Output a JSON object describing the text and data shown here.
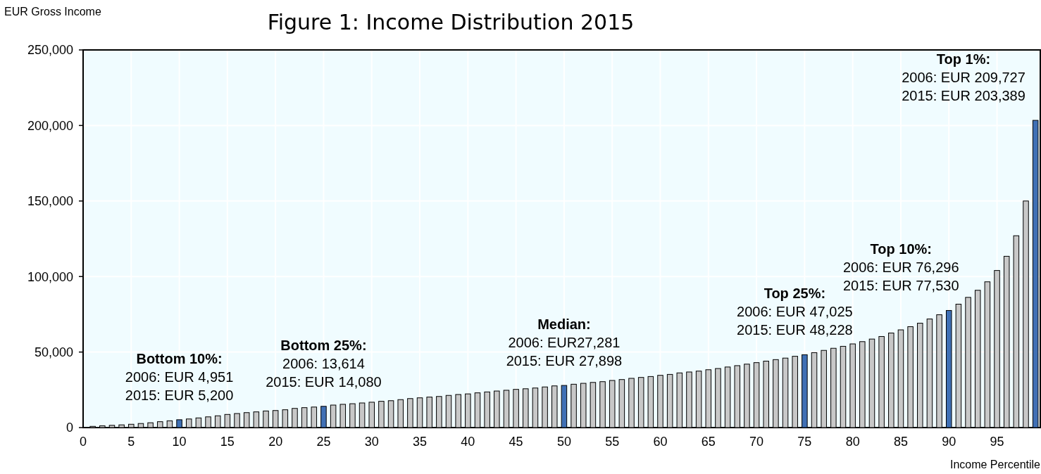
{
  "chart_data": {
    "type": "bar",
    "title": "Figure 1: Income Distribution 2015",
    "xlabel": "Income Percentile",
    "ylabel": "EUR Gross Income",
    "x": [
      1,
      2,
      3,
      4,
      5,
      6,
      7,
      8,
      9,
      10,
      11,
      12,
      13,
      14,
      15,
      16,
      17,
      18,
      19,
      20,
      21,
      22,
      23,
      24,
      25,
      26,
      27,
      28,
      29,
      30,
      31,
      32,
      33,
      34,
      35,
      36,
      37,
      38,
      39,
      40,
      41,
      42,
      43,
      44,
      45,
      46,
      47,
      48,
      49,
      50,
      51,
      52,
      53,
      54,
      55,
      56,
      57,
      58,
      59,
      60,
      61,
      62,
      63,
      64,
      65,
      66,
      67,
      68,
      69,
      70,
      71,
      72,
      73,
      74,
      75,
      76,
      77,
      78,
      79,
      80,
      81,
      82,
      83,
      84,
      85,
      86,
      87,
      88,
      89,
      90,
      91,
      92,
      93,
      94,
      95,
      96,
      97,
      98,
      99
    ],
    "values": [
      800,
      1200,
      1500,
      1800,
      2200,
      2700,
      3200,
      3900,
      4500,
      5200,
      5700,
      6400,
      7100,
      7800,
      8700,
      9300,
      9900,
      10400,
      11000,
      11300,
      11800,
      12700,
      13200,
      13600,
      14080,
      14900,
      15400,
      15800,
      16300,
      16800,
      17400,
      17800,
      18500,
      19200,
      19700,
      20200,
      20600,
      21300,
      21900,
      22300,
      23000,
      23600,
      24200,
      24700,
      25300,
      25700,
      26200,
      26900,
      27600,
      27898,
      28700,
      29300,
      29900,
      30400,
      31200,
      31800,
      32600,
      33200,
      33800,
      34600,
      35200,
      36200,
      36800,
      37400,
      38300,
      39100,
      40100,
      41000,
      42000,
      43000,
      44000,
      45000,
      46000,
      47200,
      48228,
      49600,
      51100,
      52500,
      53800,
      55400,
      56900,
      58600,
      60300,
      62600,
      64700,
      66800,
      69100,
      71900,
      74700,
      77530,
      81700,
      86200,
      90900,
      96500,
      104000,
      113400,
      127000,
      150000,
      203389
    ],
    "colors": [
      "#c8c8c8",
      "#c8c8c8",
      "#c8c8c8",
      "#c8c8c8",
      "#c8c8c8",
      "#c8c8c8",
      "#c8c8c8",
      "#c8c8c8",
      "#c8c8c8",
      "#3f70b5",
      "#c8c8c8",
      "#c8c8c8",
      "#c8c8c8",
      "#c8c8c8",
      "#c8c8c8",
      "#c8c8c8",
      "#c8c8c8",
      "#c8c8c8",
      "#c8c8c8",
      "#c8c8c8",
      "#c8c8c8",
      "#c8c8c8",
      "#c8c8c8",
      "#c8c8c8",
      "#3f70b5",
      "#c8c8c8",
      "#c8c8c8",
      "#c8c8c8",
      "#c8c8c8",
      "#c8c8c8",
      "#c8c8c8",
      "#c8c8c8",
      "#c8c8c8",
      "#c8c8c8",
      "#c8c8c8",
      "#c8c8c8",
      "#c8c8c8",
      "#c8c8c8",
      "#c8c8c8",
      "#c8c8c8",
      "#c8c8c8",
      "#c8c8c8",
      "#c8c8c8",
      "#c8c8c8",
      "#c8c8c8",
      "#c8c8c8",
      "#c8c8c8",
      "#c8c8c8",
      "#c8c8c8",
      "#3f70b5",
      "#c8c8c8",
      "#c8c8c8",
      "#c8c8c8",
      "#c8c8c8",
      "#c8c8c8",
      "#c8c8c8",
      "#c8c8c8",
      "#c8c8c8",
      "#c8c8c8",
      "#c8c8c8",
      "#c8c8c8",
      "#c8c8c8",
      "#c8c8c8",
      "#c8c8c8",
      "#c8c8c8",
      "#c8c8c8",
      "#c8c8c8",
      "#c8c8c8",
      "#c8c8c8",
      "#c8c8c8",
      "#c8c8c8",
      "#c8c8c8",
      "#c8c8c8",
      "#c8c8c8",
      "#3f70b5",
      "#c8c8c8",
      "#c8c8c8",
      "#c8c8c8",
      "#c8c8c8",
      "#c8c8c8",
      "#c8c8c8",
      "#c8c8c8",
      "#c8c8c8",
      "#c8c8c8",
      "#c8c8c8",
      "#c8c8c8",
      "#c8c8c8",
      "#c8c8c8",
      "#c8c8c8",
      "#3f70b5",
      "#c8c8c8",
      "#c8c8c8",
      "#c8c8c8",
      "#c8c8c8",
      "#c8c8c8",
      "#c8c8c8",
      "#c8c8c8",
      "#c8c8c8",
      "#3f70b5"
    ],
    "xlim": [
      0,
      99.5
    ],
    "xticks": [
      0,
      5,
      10,
      15,
      20,
      25,
      30,
      35,
      40,
      45,
      50,
      55,
      60,
      65,
      70,
      75,
      80,
      85,
      90,
      95
    ],
    "ylim": [
      0,
      250000
    ],
    "yticks": [
      {
        "value": 0,
        "label": "0"
      },
      {
        "value": 50000,
        "label": "50,000"
      },
      {
        "value": 100000,
        "label": "100,000"
      },
      {
        "value": 150000,
        "label": "150,000"
      },
      {
        "value": 200000,
        "label": "200,000"
      },
      {
        "value": 250000,
        "label": "250,000"
      }
    ],
    "grid": true,
    "annotations": [
      {
        "text": "Bottom 10%:\n2006: EUR 4,951\n2015: EUR 5,200",
        "x": 10,
        "y": 5200
      },
      {
        "text": "Bottom 25%:\n2006: 13,614\n2015: EUR 14,080",
        "x": 25,
        "y": 14080
      },
      {
        "text": "Median:\n2006: EUR27,281\n2015: EUR 27,898",
        "x": 50,
        "y": 27898
      },
      {
        "text": "Top 25%:\n2006: EUR 47,025\n2015: EUR 48,228",
        "x": 75,
        "y": 48228
      },
      {
        "text": "Top 10%:\n2006: EUR 76,296\n2015: EUR 77,530",
        "x": 90,
        "y": 77530
      },
      {
        "text": "Top 1%:\n2006: EUR 209,727\n2015: EUR 203,389",
        "x": 99,
        "y": 203389
      }
    ]
  }
}
